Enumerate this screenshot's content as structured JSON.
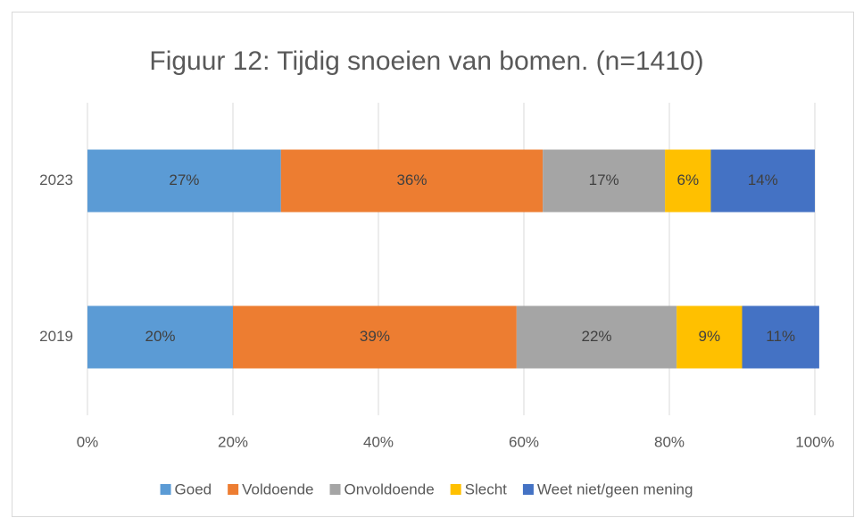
{
  "chart_data": {
    "type": "stacked_barh",
    "title": "Figuur 12: Tijdig snoeien van bomen. (n=1410)",
    "categories": [
      "2023",
      "2019"
    ],
    "series": [
      {
        "name": "Goed",
        "color": "#5b9bd5",
        "values": [
          26.6,
          20
        ],
        "value_labels": [
          "27%",
          "20%"
        ]
      },
      {
        "name": "Voldoende",
        "color": "#ed7d31",
        "values": [
          36,
          39
        ],
        "value_labels": [
          "36%",
          "39%"
        ]
      },
      {
        "name": "Onvoldoende",
        "color": "#a5a5a5",
        "values": [
          16.8,
          22
        ],
        "value_labels": [
          "17%",
          "22%"
        ]
      },
      {
        "name": "Slecht",
        "color": "#ffc000",
        "values": [
          6.3,
          9
        ],
        "value_labels": [
          "6%",
          "9%"
        ]
      },
      {
        "name": "Weet niet/geen mening",
        "color": "#4472c4",
        "values": [
          14.3,
          10.6
        ],
        "value_labels": [
          "14%",
          "11%"
        ]
      }
    ],
    "xlim": [
      0,
      100
    ],
    "xticks": [
      {
        "value": 0,
        "label": "0%"
      },
      {
        "value": 20,
        "label": "20%"
      },
      {
        "value": 40,
        "label": "40%"
      },
      {
        "value": 60,
        "label": "60%"
      },
      {
        "value": 80,
        "label": "80%"
      },
      {
        "value": 100,
        "label": "100%"
      }
    ],
    "grid": true,
    "legend": "bottom"
  }
}
